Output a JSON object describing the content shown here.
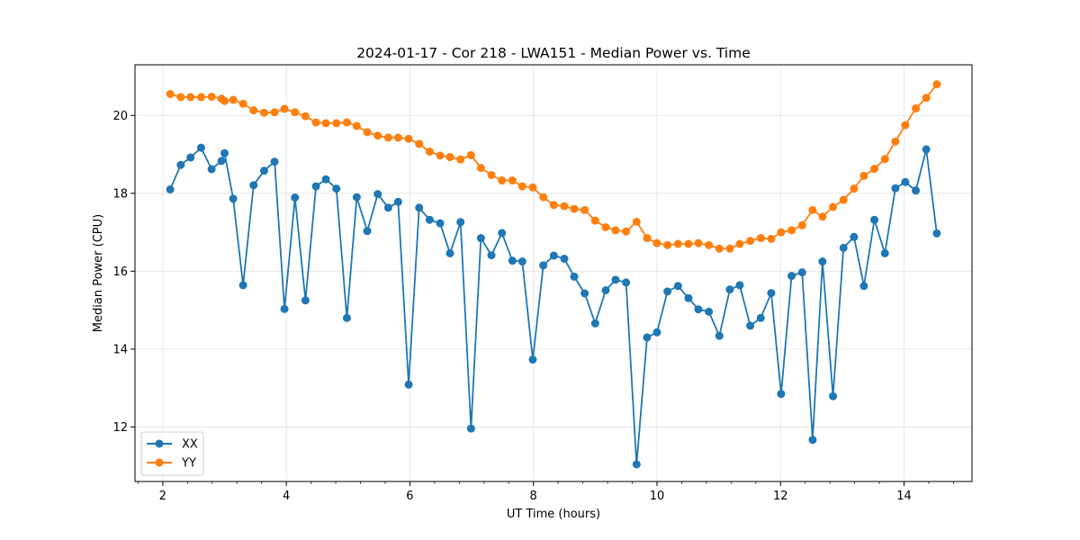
{
  "chart_data": {
    "type": "line",
    "title": "2024-01-17 - Cor 218 - LWA151 - Median Power vs. Time",
    "xlabel": "UT Time (hours)",
    "ylabel": "Median Power (CPU)",
    "xlim": [
      1.55,
      15.1
    ],
    "ylim": [
      10.6,
      21.3
    ],
    "xticks": [
      2,
      4,
      6,
      8,
      10,
      12,
      14
    ],
    "yticks": [
      12,
      14,
      16,
      18,
      20
    ],
    "grid": true,
    "legend_position": "bottom-left",
    "series": [
      {
        "name": "XX",
        "color": "#1f77b4",
        "x": [
          2.12,
          2.29,
          2.45,
          2.62,
          2.79,
          2.95,
          3.0,
          3.14,
          3.3,
          3.47,
          3.64,
          3.81,
          3.97,
          4.14,
          4.31,
          4.48,
          4.64,
          4.81,
          4.98,
          5.14,
          5.31,
          5.48,
          5.65,
          5.81,
          5.98,
          6.15,
          6.32,
          6.49,
          6.65,
          6.82,
          6.99,
          7.15,
          7.32,
          7.49,
          7.66,
          7.82,
          7.99,
          8.16,
          8.33,
          8.5,
          8.66,
          8.83,
          9.0,
          9.17,
          9.33,
          9.5,
          9.67,
          9.84,
          10.0,
          10.17,
          10.34,
          10.51,
          10.67,
          10.84,
          11.01,
          11.18,
          11.34,
          11.51,
          11.68,
          11.85,
          12.01,
          12.18,
          12.35,
          12.52,
          12.68,
          12.85,
          13.02,
          13.19,
          13.35,
          13.52,
          13.69,
          13.86,
          14.02,
          14.19,
          14.36,
          14.53
        ],
        "y": [
          18.1,
          18.73,
          18.92,
          19.17,
          18.62,
          18.83,
          19.03,
          17.86,
          15.64,
          18.21,
          18.58,
          18.81,
          15.03,
          17.89,
          15.25,
          18.18,
          18.36,
          18.12,
          14.8,
          17.9,
          17.03,
          17.98,
          17.63,
          17.78,
          13.09,
          17.63,
          17.32,
          17.23,
          16.46,
          17.26,
          11.96,
          16.85,
          16.41,
          16.98,
          16.27,
          16.25,
          13.73,
          16.15,
          16.4,
          16.32,
          15.86,
          15.43,
          14.66,
          15.51,
          15.78,
          15.71,
          11.04,
          14.3,
          14.43,
          15.48,
          15.62,
          15.31,
          15.02,
          14.96,
          14.34,
          15.53,
          15.64,
          14.6,
          14.8,
          15.44,
          12.85,
          15.88,
          15.97,
          11.67,
          16.25,
          12.79,
          16.6,
          16.88,
          15.62,
          17.32,
          16.46,
          18.13,
          18.29,
          18.07,
          19.13,
          16.97
        ]
      },
      {
        "name": "YY",
        "color": "#ff7f0e",
        "x": [
          2.12,
          2.29,
          2.45,
          2.62,
          2.79,
          2.95,
          3.0,
          3.14,
          3.3,
          3.47,
          3.64,
          3.81,
          3.97,
          4.14,
          4.31,
          4.48,
          4.64,
          4.81,
          4.98,
          5.14,
          5.31,
          5.48,
          5.65,
          5.81,
          5.98,
          6.15,
          6.32,
          6.49,
          6.65,
          6.82,
          6.99,
          7.15,
          7.32,
          7.49,
          7.66,
          7.82,
          7.99,
          8.16,
          8.33,
          8.5,
          8.66,
          8.83,
          9.0,
          9.17,
          9.33,
          9.5,
          9.67,
          9.84,
          10.0,
          10.17,
          10.34,
          10.51,
          10.67,
          10.84,
          11.01,
          11.18,
          11.34,
          11.51,
          11.68,
          11.85,
          12.01,
          12.18,
          12.35,
          12.52,
          12.68,
          12.85,
          13.02,
          13.19,
          13.35,
          13.52,
          13.69,
          13.86,
          14.02,
          14.19,
          14.36,
          14.53
        ],
        "y": [
          20.55,
          20.47,
          20.47,
          20.47,
          20.48,
          20.43,
          20.37,
          20.4,
          20.3,
          20.13,
          20.07,
          20.08,
          20.17,
          20.08,
          19.98,
          19.82,
          19.8,
          19.8,
          19.82,
          19.73,
          19.57,
          19.48,
          19.43,
          19.43,
          19.4,
          19.27,
          19.07,
          18.97,
          18.93,
          18.87,
          18.98,
          18.65,
          18.47,
          18.33,
          18.33,
          18.18,
          18.15,
          17.9,
          17.7,
          17.67,
          17.6,
          17.57,
          17.3,
          17.13,
          17.05,
          17.02,
          17.27,
          16.85,
          16.72,
          16.67,
          16.7,
          16.7,
          16.72,
          16.67,
          16.58,
          16.58,
          16.7,
          16.78,
          16.85,
          16.83,
          17.0,
          17.05,
          17.18,
          17.57,
          17.4,
          17.65,
          17.83,
          18.12,
          18.45,
          18.63,
          18.88,
          19.33,
          19.75,
          20.18,
          20.45,
          20.8
        ]
      }
    ]
  }
}
